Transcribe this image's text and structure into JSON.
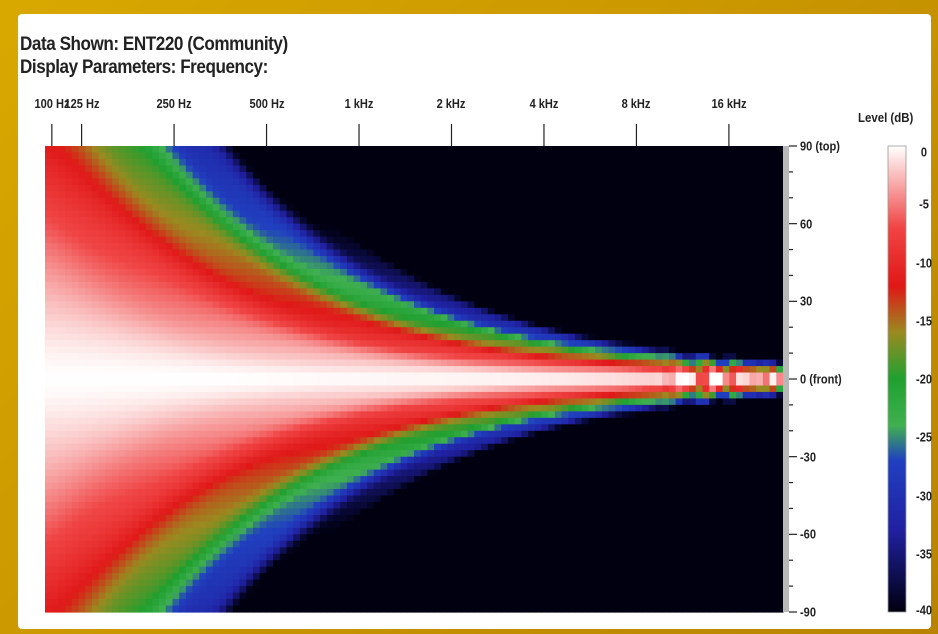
{
  "header": {
    "title_line1": "Data Shown: ENT220 (Community)",
    "title_line2": "Display Parameters: Frequency:"
  },
  "chart_data": {
    "type": "heatmap",
    "title": "Data Shown: ENT220 (Community)",
    "subtitle": "Display Parameters: Frequency:",
    "x_axis": {
      "scale": "log",
      "range_hz": [
        95,
        24000
      ],
      "tick_labels": [
        "100 Hz",
        "125 Hz",
        "250 Hz",
        "500 Hz",
        "1 kHz",
        "2 kHz",
        "4 kHz",
        "8 kHz",
        "16 kHz"
      ],
      "tick_values_hz": [
        100,
        125,
        250,
        500,
        1000,
        2000,
        4000,
        8000,
        16000
      ],
      "position": "top"
    },
    "y_axis": {
      "range_deg": [
        -90,
        90
      ],
      "tick_labels": [
        "90 (top)",
        "60",
        "30",
        "0 (front)",
        "-30",
        "-60",
        "-90"
      ],
      "tick_values": [
        90,
        60,
        30,
        0,
        -30,
        -60,
        -90
      ],
      "position": "right"
    },
    "colorbar": {
      "title": "Level (dB)",
      "range_db": [
        -40,
        0
      ],
      "tick_labels": [
        "0",
        "-5",
        "-10",
        "-15",
        "-20",
        "-25",
        "-30",
        "-35",
        "-40"
      ],
      "tick_values": [
        0,
        -5,
        -10,
        -15,
        -20,
        -25,
        -30,
        -35,
        -40
      ],
      "colors": {
        "0": "#ffffff",
        "-7": "#f04545",
        "-12": "#e01818",
        "-16": "#9a8a20",
        "-20": "#20a030",
        "-24": "#40b050",
        "-27": "#2040c0",
        "-33": "#2020a0",
        "-40": "#000010"
      }
    },
    "description_values": {
      "beam_center_deg": 0,
      "approx_level_db_at_0deg": 0
    }
  }
}
